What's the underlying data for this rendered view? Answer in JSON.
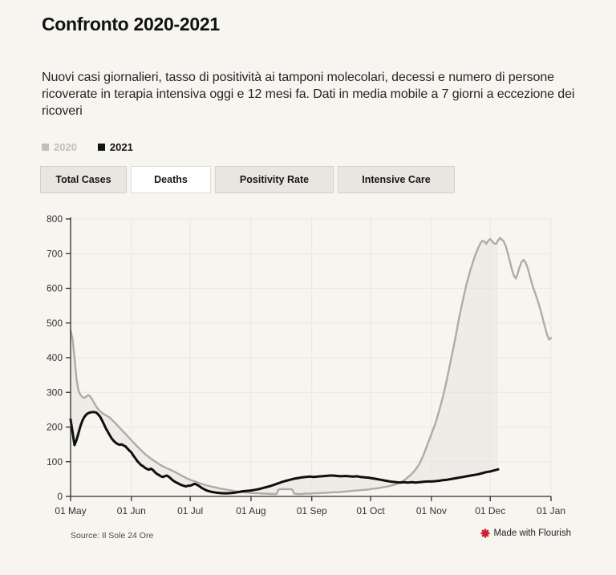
{
  "page": {
    "background": "#f7f5f0"
  },
  "header": {
    "title": "Confronto 2020-2021",
    "description": "Nuovi casi giornalieri, tasso di positività ai tamponi molecolari, decessi e numero di persone ricoverate in terapia intensiva oggi e 12 mesi fa. Dati in media mobile a 7 giorni a eccezione dei ricoveri"
  },
  "legend": {
    "items": [
      {
        "label": "2020",
        "color": "#c6bdb9",
        "text_color": "#c6bdb9"
      },
      {
        "label": "2021",
        "color": "#141414",
        "text_color": "#141414"
      }
    ]
  },
  "tabs": [
    {
      "label": "Total Cases",
      "selected": false
    },
    {
      "label": "Deaths",
      "selected": true
    },
    {
      "label": "Positivity Rate",
      "selected": false
    },
    {
      "label": "Intensive Care",
      "selected": false
    }
  ],
  "footer": {
    "source": "Source: Il Sole 24 Ore",
    "credit": "Made with Flourish",
    "flourish_icon_color": "#cf2030"
  },
  "chart_data": {
    "type": "line",
    "title": "Deaths, 7-day moving average, 2020 vs 2021 (selected tab: Deaths)",
    "x_axis": {
      "tick_labels": [
        "01 May",
        "01 Jun",
        "01 Jul",
        "01 Aug",
        "01 Sep",
        "01 Oct",
        "01 Nov",
        "01 Dec",
        "01 Jan"
      ],
      "tick_days": [
        0,
        31,
        61,
        92,
        123,
        153,
        184,
        214,
        245
      ],
      "domain_days": [
        0,
        245
      ]
    },
    "y_axis": {
      "min": 0,
      "max": 800,
      "ticks": [
        0,
        100,
        200,
        300,
        400,
        500,
        600,
        700,
        800
      ]
    },
    "grid": true,
    "colors": {
      "grid": "#eae6e0",
      "axis": "#2d2d2d",
      "fill_between": "#e9e5e0"
    },
    "fill_between_opacity": 0.6,
    "series": [
      {
        "name": "2020",
        "color": "#b3aaa5",
        "width": 2.4,
        "points": [
          [
            0,
            478
          ],
          [
            1,
            455
          ],
          [
            2,
            400
          ],
          [
            3,
            340
          ],
          [
            4,
            305
          ],
          [
            5,
            293
          ],
          [
            6,
            287
          ],
          [
            7,
            284
          ],
          [
            8,
            288
          ],
          [
            9,
            292
          ],
          [
            10,
            288
          ],
          [
            11,
            280
          ],
          [
            12,
            270
          ],
          [
            13,
            260
          ],
          [
            14,
            252
          ],
          [
            15,
            246
          ],
          [
            16,
            241
          ],
          [
            17,
            237
          ],
          [
            18,
            234
          ],
          [
            20,
            227
          ],
          [
            22,
            216
          ],
          [
            24,
            204
          ],
          [
            26,
            192
          ],
          [
            28,
            180
          ],
          [
            30,
            168
          ],
          [
            32,
            156
          ],
          [
            34,
            144
          ],
          [
            36,
            133
          ],
          [
            38,
            122
          ],
          [
            40,
            113
          ],
          [
            42,
            105
          ],
          [
            44,
            97
          ],
          [
            46,
            90
          ],
          [
            48,
            84
          ],
          [
            50,
            79
          ],
          [
            52,
            74
          ],
          [
            54,
            68
          ],
          [
            56,
            62
          ],
          [
            58,
            56
          ],
          [
            60,
            50
          ],
          [
            62,
            46
          ],
          [
            64,
            42
          ],
          [
            66,
            38
          ],
          [
            68,
            34
          ],
          [
            70,
            31
          ],
          [
            72,
            28
          ],
          [
            74,
            26
          ],
          [
            76,
            23
          ],
          [
            78,
            21
          ],
          [
            80,
            19
          ],
          [
            82,
            17
          ],
          [
            84,
            15
          ],
          [
            86,
            13
          ],
          [
            88,
            12
          ],
          [
            90,
            11
          ],
          [
            92,
            10
          ],
          [
            94,
            9
          ],
          [
            96,
            9
          ],
          [
            98,
            8
          ],
          [
            100,
            8
          ],
          [
            102,
            7
          ],
          [
            105,
            7
          ],
          [
            106,
            20
          ],
          [
            108,
            21
          ],
          [
            110,
            21
          ],
          [
            112,
            21
          ],
          [
            113,
            20
          ],
          [
            114,
            8
          ],
          [
            116,
            7
          ],
          [
            118,
            7
          ],
          [
            120,
            8
          ],
          [
            122,
            8
          ],
          [
            124,
            9
          ],
          [
            126,
            9
          ],
          [
            128,
            10
          ],
          [
            130,
            10
          ],
          [
            132,
            11
          ],
          [
            134,
            12
          ],
          [
            136,
            12
          ],
          [
            138,
            13
          ],
          [
            140,
            14
          ],
          [
            142,
            15
          ],
          [
            144,
            16
          ],
          [
            146,
            17
          ],
          [
            148,
            18
          ],
          [
            150,
            19
          ],
          [
            152,
            20
          ],
          [
            154,
            22
          ],
          [
            156,
            23
          ],
          [
            158,
            25
          ],
          [
            160,
            27
          ],
          [
            162,
            29
          ],
          [
            164,
            32
          ],
          [
            166,
            35
          ],
          [
            168,
            40
          ],
          [
            170,
            46
          ],
          [
            172,
            55
          ],
          [
            174,
            65
          ],
          [
            176,
            78
          ],
          [
            178,
            95
          ],
          [
            180,
            120
          ],
          [
            182,
            150
          ],
          [
            184,
            180
          ],
          [
            186,
            210
          ],
          [
            188,
            248
          ],
          [
            190,
            290
          ],
          [
            192,
            340
          ],
          [
            194,
            395
          ],
          [
            196,
            450
          ],
          [
            198,
            512
          ],
          [
            200,
            565
          ],
          [
            202,
            615
          ],
          [
            204,
            655
          ],
          [
            206,
            690
          ],
          [
            208,
            718
          ],
          [
            209,
            730
          ],
          [
            210,
            737
          ],
          [
            211,
            735
          ],
          [
            212,
            728
          ],
          [
            213,
            738
          ],
          [
            214,
            742
          ],
          [
            215,
            735
          ],
          [
            216,
            729
          ],
          [
            217,
            728
          ],
          [
            218,
            738
          ],
          [
            219,
            745
          ],
          [
            220,
            740
          ],
          [
            221,
            734
          ],
          [
            222,
            720
          ],
          [
            223,
            700
          ],
          [
            224,
            678
          ],
          [
            225,
            655
          ],
          [
            226,
            638
          ],
          [
            227,
            628
          ],
          [
            228,
            642
          ],
          [
            229,
            662
          ],
          [
            230,
            676
          ],
          [
            231,
            682
          ],
          [
            232,
            675
          ],
          [
            233,
            660
          ],
          [
            234,
            640
          ],
          [
            235,
            618
          ],
          [
            236,
            600
          ],
          [
            237,
            585
          ],
          [
            238,
            568
          ],
          [
            239,
            550
          ],
          [
            240,
            530
          ],
          [
            241,
            508
          ],
          [
            242,
            486
          ],
          [
            243,
            466
          ],
          [
            244,
            452
          ],
          [
            245,
            457
          ]
        ]
      },
      {
        "name": "2021",
        "color": "#0f0f0f",
        "width": 3,
        "points": [
          [
            0,
            222
          ],
          [
            1,
            186
          ],
          [
            2,
            148
          ],
          [
            3,
            162
          ],
          [
            4,
            182
          ],
          [
            5,
            202
          ],
          [
            6,
            218
          ],
          [
            7,
            229
          ],
          [
            8,
            236
          ],
          [
            9,
            240
          ],
          [
            10,
            242
          ],
          [
            11,
            243
          ],
          [
            12,
            243
          ],
          [
            13,
            242
          ],
          [
            14,
            237
          ],
          [
            15,
            230
          ],
          [
            16,
            220
          ],
          [
            17,
            208
          ],
          [
            18,
            196
          ],
          [
            19,
            186
          ],
          [
            20,
            176
          ],
          [
            21,
            167
          ],
          [
            22,
            160
          ],
          [
            23,
            155
          ],
          [
            24,
            151
          ],
          [
            25,
            149
          ],
          [
            26,
            150
          ],
          [
            27,
            147
          ],
          [
            28,
            144
          ],
          [
            29,
            138
          ],
          [
            30,
            132
          ],
          [
            31,
            127
          ],
          [
            32,
            118
          ],
          [
            33,
            110
          ],
          [
            34,
            102
          ],
          [
            35,
            96
          ],
          [
            36,
            90
          ],
          [
            37,
            87
          ],
          [
            38,
            82
          ],
          [
            39,
            79
          ],
          [
            40,
            77
          ],
          [
            41,
            80
          ],
          [
            42,
            76
          ],
          [
            43,
            70
          ],
          [
            44,
            65
          ],
          [
            45,
            62
          ],
          [
            46,
            58
          ],
          [
            47,
            56
          ],
          [
            48,
            58
          ],
          [
            49,
            60
          ],
          [
            50,
            57
          ],
          [
            51,
            52
          ],
          [
            52,
            47
          ],
          [
            53,
            43
          ],
          [
            54,
            40
          ],
          [
            55,
            37
          ],
          [
            56,
            34
          ],
          [
            57,
            32
          ],
          [
            58,
            30
          ],
          [
            59,
            29
          ],
          [
            60,
            31
          ],
          [
            61,
            31
          ],
          [
            62,
            33
          ],
          [
            63,
            36
          ],
          [
            64,
            35
          ],
          [
            65,
            32
          ],
          [
            66,
            28
          ],
          [
            67,
            24
          ],
          [
            68,
            21
          ],
          [
            69,
            18
          ],
          [
            70,
            16
          ],
          [
            72,
            13
          ],
          [
            74,
            11
          ],
          [
            76,
            10
          ],
          [
            78,
            9
          ],
          [
            80,
            9
          ],
          [
            82,
            10
          ],
          [
            84,
            11
          ],
          [
            86,
            13
          ],
          [
            88,
            15
          ],
          [
            90,
            16
          ],
          [
            92,
            17
          ],
          [
            94,
            19
          ],
          [
            96,
            21
          ],
          [
            98,
            24
          ],
          [
            100,
            27
          ],
          [
            102,
            30
          ],
          [
            104,
            34
          ],
          [
            106,
            38
          ],
          [
            108,
            42
          ],
          [
            110,
            45
          ],
          [
            112,
            48
          ],
          [
            114,
            51
          ],
          [
            116,
            53
          ],
          [
            118,
            55
          ],
          [
            120,
            56
          ],
          [
            122,
            57
          ],
          [
            124,
            56
          ],
          [
            126,
            57
          ],
          [
            128,
            58
          ],
          [
            130,
            59
          ],
          [
            132,
            60
          ],
          [
            134,
            60
          ],
          [
            136,
            59
          ],
          [
            138,
            58
          ],
          [
            140,
            59
          ],
          [
            142,
            58
          ],
          [
            144,
            57
          ],
          [
            146,
            58
          ],
          [
            148,
            56
          ],
          [
            150,
            55
          ],
          [
            152,
            54
          ],
          [
            153,
            53
          ],
          [
            155,
            51
          ],
          [
            158,
            48
          ],
          [
            160,
            46
          ],
          [
            162,
            44
          ],
          [
            164,
            42
          ],
          [
            166,
            41
          ],
          [
            168,
            40
          ],
          [
            170,
            41
          ],
          [
            172,
            40
          ],
          [
            174,
            41
          ],
          [
            176,
            40
          ],
          [
            178,
            41
          ],
          [
            180,
            42
          ],
          [
            182,
            43
          ],
          [
            184,
            43
          ],
          [
            186,
            44
          ],
          [
            188,
            45
          ],
          [
            190,
            47
          ],
          [
            192,
            48
          ],
          [
            194,
            50
          ],
          [
            196,
            52
          ],
          [
            198,
            54
          ],
          [
            200,
            56
          ],
          [
            202,
            58
          ],
          [
            204,
            60
          ],
          [
            206,
            62
          ],
          [
            208,
            64
          ],
          [
            210,
            67
          ],
          [
            212,
            70
          ],
          [
            214,
            72
          ],
          [
            216,
            75
          ],
          [
            218,
            78
          ]
        ]
      }
    ]
  }
}
